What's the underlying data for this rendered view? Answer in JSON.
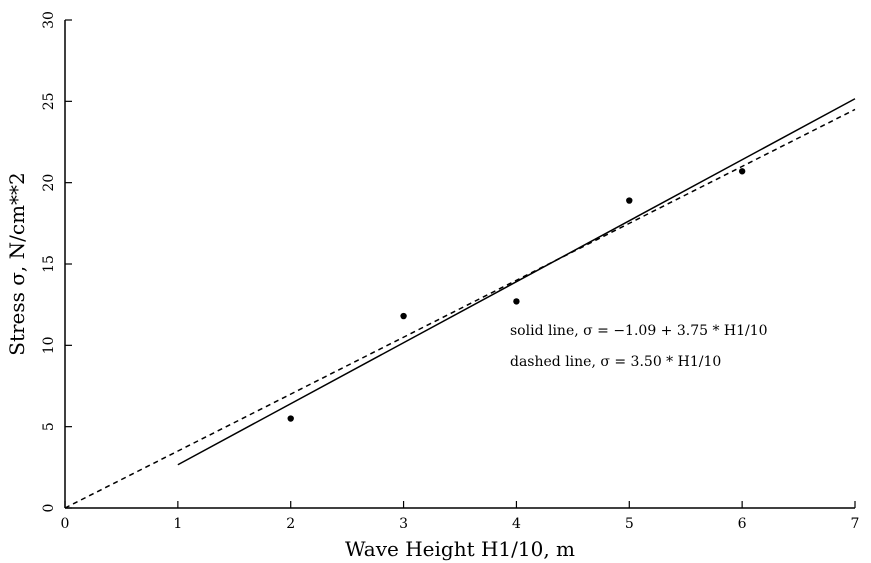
{
  "chart_data": {
    "type": "scatter",
    "xlabel": "Wave Height H1/10, m",
    "ylabel": "Stress σ, N/cm**2",
    "xlim": [
      0,
      7
    ],
    "ylim": [
      0,
      30
    ],
    "x_ticks": [
      "0",
      "1",
      "2",
      "3",
      "4",
      "5",
      "6",
      "7"
    ],
    "y_ticks": [
      "0",
      "5",
      "10",
      "15",
      "20",
      "25",
      "30"
    ],
    "grid": false,
    "points": {
      "x": [
        2,
        3,
        4,
        5,
        6
      ],
      "y": [
        5.5,
        11.8,
        12.7,
        18.9,
        20.7
      ]
    },
    "lines": [
      {
        "style": "solid",
        "intercept": -1.09,
        "slope": 3.75,
        "x_range": [
          1,
          7
        ],
        "label": "solid line, σ = −1.09 + 3.75 * H1/10"
      },
      {
        "style": "dashed",
        "intercept": 0,
        "slope": 3.5,
        "x_range": [
          0,
          7
        ],
        "label": "dashed line, σ = 3.50 * H1/10"
      }
    ]
  }
}
